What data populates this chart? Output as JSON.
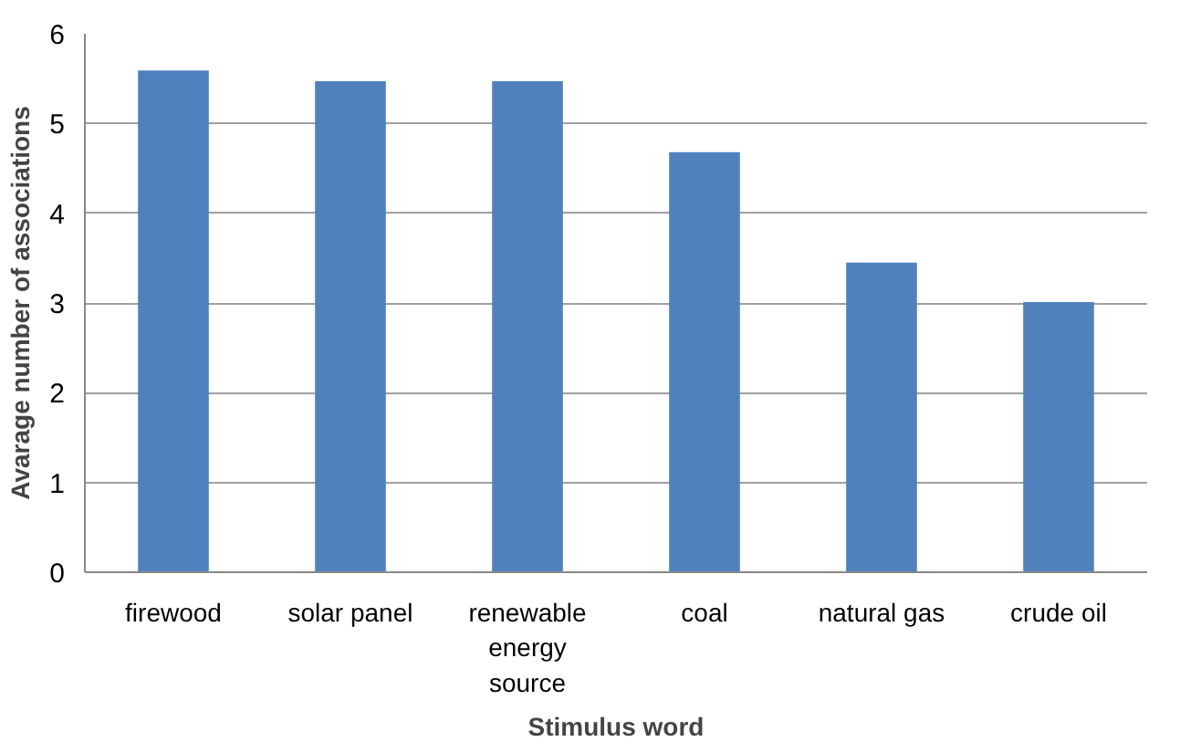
{
  "chart_data": {
    "type": "bar",
    "xlabel": "Stimulus word",
    "ylabel": "Avarage number of associations",
    "categories": [
      "firewood",
      "solar panel",
      "renewable energy source",
      "coal",
      "natural gas",
      "crude oil"
    ],
    "values": [
      5.59,
      5.47,
      5.47,
      4.68,
      3.45,
      3.01
    ],
    "color": "#4f81bd",
    "ylim": [
      0,
      6
    ],
    "yticks": [
      0,
      1,
      2,
      3,
      4,
      5,
      6
    ],
    "grid": "y"
  }
}
